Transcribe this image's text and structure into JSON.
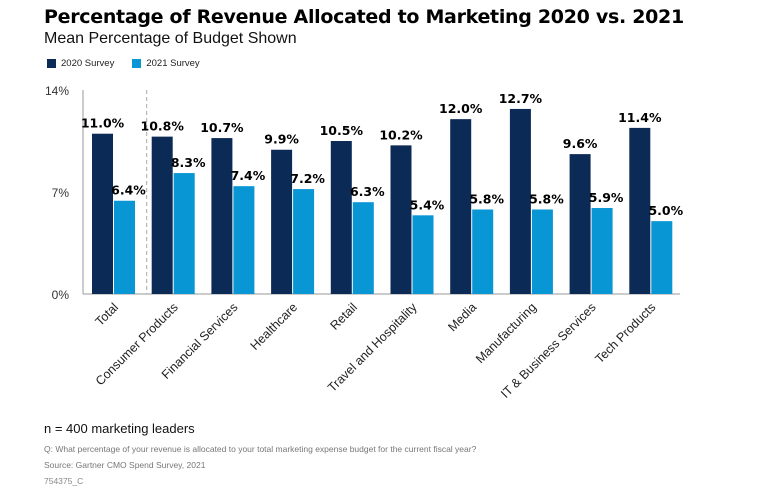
{
  "chart_data": {
    "type": "bar",
    "title": "Percentage of Revenue Allocated to Marketing 2020 vs. 2021",
    "subtitle": "Mean Percentage of Budget Shown",
    "xlabel": "",
    "ylabel": "",
    "ylim": [
      0,
      14
    ],
    "yticks": [
      0,
      7,
      14
    ],
    "ytick_labels": [
      "0%",
      "7%",
      "14%"
    ],
    "grid": false,
    "legend_position": "top-left",
    "categories": [
      "Total",
      "Consumer Products",
      "Financial Services",
      "Healthcare",
      "Retail",
      "Travel and Hospitality",
      "Media",
      "Manufacturing",
      "IT & Business Services",
      "Tech Products"
    ],
    "series": [
      {
        "name": "2020 Survey",
        "color": "#0c2a56",
        "values": [
          11.0,
          10.8,
          10.7,
          9.9,
          10.5,
          10.2,
          12.0,
          12.7,
          9.6,
          11.4
        ],
        "labels": [
          "11.0%",
          "10.8%",
          "10.7%",
          "9.9%",
          "10.5%",
          "10.2%",
          "12.0%",
          "12.7%",
          "9.6%",
          "11.4%"
        ]
      },
      {
        "name": "2021 Survey",
        "color": "#0996d4",
        "values": [
          6.4,
          8.3,
          7.4,
          7.2,
          6.3,
          5.4,
          5.8,
          5.8,
          5.9,
          5.0
        ],
        "labels": [
          "6.4%",
          "8.3%",
          "7.4%",
          "7.2%",
          "6.3%",
          "5.4%",
          "5.8%",
          "5.8%",
          "5.9%",
          "5.0%"
        ]
      }
    ],
    "annotations": [
      "dashed separator after Total"
    ]
  },
  "legend": {
    "items": [
      {
        "label": "2020 Survey",
        "color": "#0c2a56"
      },
      {
        "label": "2021 Survey",
        "color": "#0996d4"
      }
    ]
  },
  "footer": {
    "n": "n = 400 marketing leaders",
    "question": "Q: What percentage of your revenue is allocated to your total marketing expense budget for the current fiscal year?",
    "source": "Source: Gartner CMO Spend Survey, 2021",
    "id": "754375_C"
  }
}
